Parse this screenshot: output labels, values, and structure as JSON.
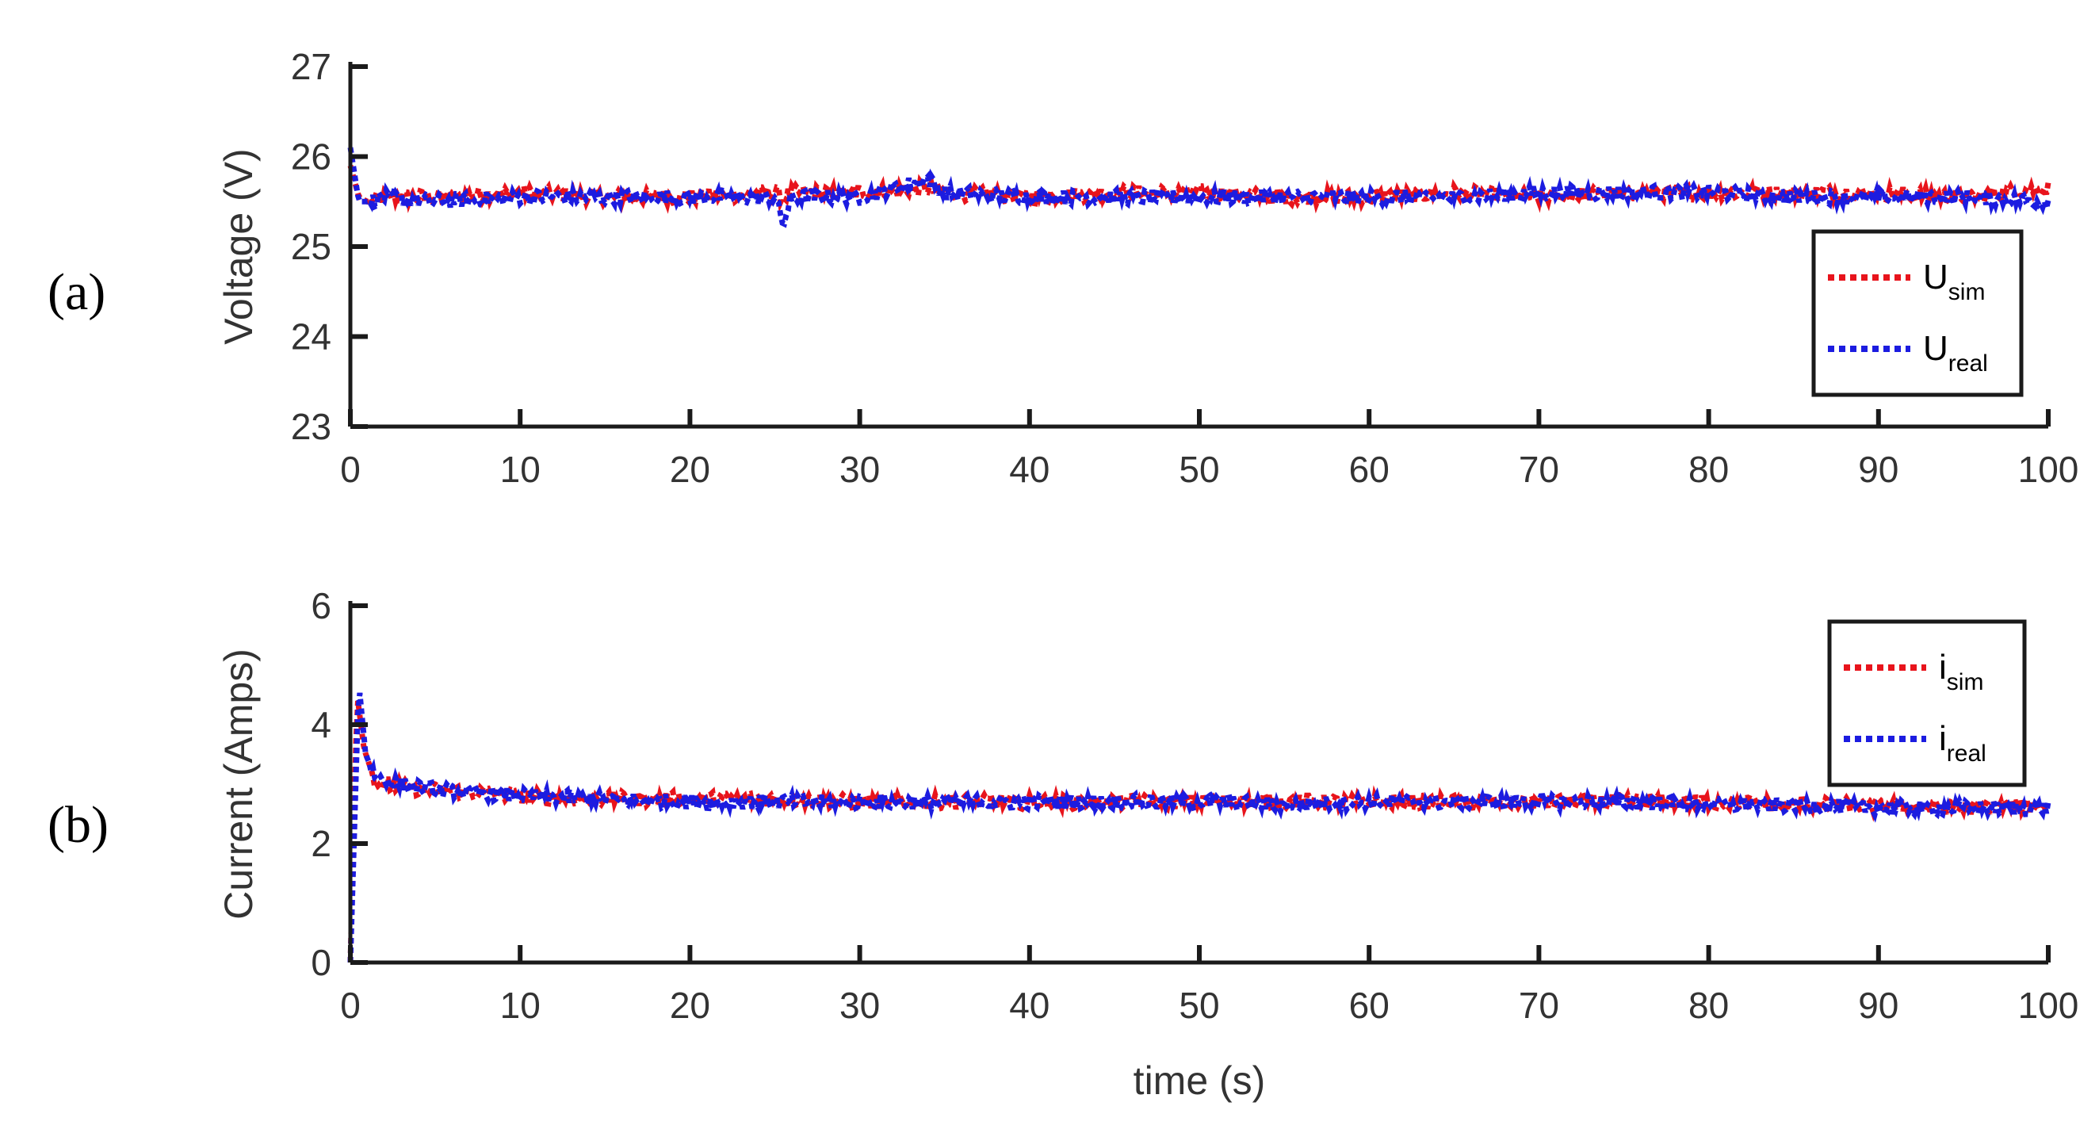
{
  "colors": {
    "sim": "#e8141c",
    "real": "#1c1ce0",
    "axis": "#1a1a1a",
    "text": "#333333"
  },
  "chart_data": [
    {
      "type": "line",
      "panel_label": "(a)",
      "xlabel": "",
      "ylabel": "Voltage (V)",
      "xlim": [
        0,
        100
      ],
      "ylim": [
        23,
        27
      ],
      "xticks": [
        "0",
        "10",
        "20",
        "30",
        "40",
        "50",
        "60",
        "70",
        "80",
        "90",
        "100"
      ],
      "yticks": [
        "23",
        "24",
        "25",
        "26",
        "27"
      ],
      "grid": false,
      "legend_position": "right",
      "series": [
        {
          "name": "U",
          "sub": "sim",
          "color": "#e8141c",
          "style": "dotted",
          "x": [
            0,
            0.5,
            1,
            2,
            5,
            10,
            15,
            20,
            25,
            25.5,
            26,
            30,
            34,
            35,
            40,
            45,
            50,
            55,
            60,
            65,
            70,
            75,
            80,
            85,
            90,
            95,
            100
          ],
          "y": [
            25.9,
            25.55,
            25.5,
            25.55,
            25.55,
            25.6,
            25.55,
            25.55,
            25.6,
            25.55,
            25.6,
            25.6,
            25.65,
            25.6,
            25.55,
            25.6,
            25.6,
            25.55,
            25.55,
            25.6,
            25.55,
            25.6,
            25.6,
            25.6,
            25.6,
            25.55,
            25.65
          ]
        },
        {
          "name": "U",
          "sub": "real",
          "color": "#1c1ce0",
          "style": "dotted",
          "x": [
            0,
            0.5,
            1,
            2,
            5,
            10,
            15,
            20,
            25,
            25.5,
            26,
            30,
            34,
            35,
            40,
            45,
            50,
            55,
            60,
            65,
            70,
            75,
            80,
            85,
            90,
            95,
            100
          ],
          "y": [
            26.1,
            25.5,
            25.5,
            25.55,
            25.5,
            25.55,
            25.55,
            25.55,
            25.55,
            25.25,
            25.55,
            25.55,
            25.75,
            25.6,
            25.55,
            25.55,
            25.55,
            25.55,
            25.55,
            25.55,
            25.6,
            25.6,
            25.6,
            25.55,
            25.55,
            25.55,
            25.5
          ]
        }
      ]
    },
    {
      "type": "line",
      "panel_label": "(b)",
      "xlabel": "time (s)",
      "ylabel": "Current (Amps)",
      "xlim": [
        0,
        100
      ],
      "ylim": [
        0,
        6
      ],
      "xticks": [
        "0",
        "10",
        "20",
        "30",
        "40",
        "50",
        "60",
        "70",
        "80",
        "90",
        "100"
      ],
      "yticks": [
        "0",
        "2",
        "4",
        "6"
      ],
      "grid": false,
      "legend_position": "top-right",
      "series": [
        {
          "name": "i",
          "sub": "sim",
          "color": "#e8141c",
          "style": "dotted",
          "x": [
            0,
            0.4,
            0.8,
            1.5,
            3,
            5,
            8,
            10,
            15,
            20,
            25,
            30,
            35,
            40,
            45,
            50,
            55,
            60,
            65,
            70,
            75,
            80,
            85,
            90,
            95,
            100
          ],
          "y": [
            0,
            4.5,
            3.6,
            3.0,
            2.95,
            2.9,
            2.85,
            2.8,
            2.75,
            2.75,
            2.75,
            2.7,
            2.7,
            2.7,
            2.7,
            2.7,
            2.7,
            2.7,
            2.7,
            2.7,
            2.7,
            2.7,
            2.65,
            2.65,
            2.6,
            2.65
          ]
        },
        {
          "name": "i",
          "sub": "real",
          "color": "#1c1ce0",
          "style": "dotted",
          "x": [
            0,
            0.5,
            0.9,
            1.5,
            3,
            5,
            8,
            10,
            15,
            20,
            25,
            30,
            35,
            40,
            45,
            50,
            55,
            60,
            65,
            70,
            75,
            80,
            85,
            90,
            95,
            100
          ],
          "y": [
            0,
            4.7,
            3.5,
            3.1,
            3.0,
            2.9,
            2.85,
            2.8,
            2.75,
            2.7,
            2.7,
            2.7,
            2.7,
            2.7,
            2.7,
            2.7,
            2.65,
            2.7,
            2.7,
            2.7,
            2.7,
            2.65,
            2.65,
            2.6,
            2.6,
            2.6
          ]
        }
      ]
    }
  ]
}
